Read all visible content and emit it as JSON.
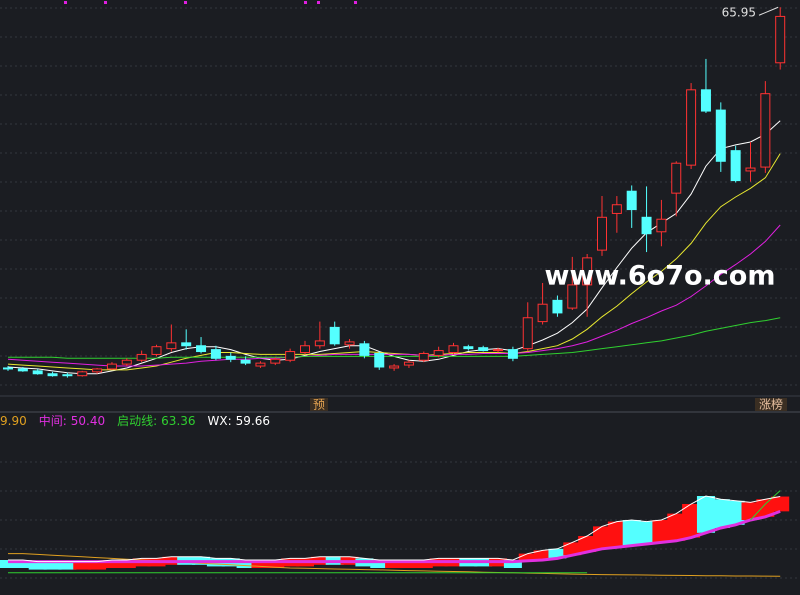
{
  "chart_data": [
    {
      "type": "candlestick",
      "open": [
        28.6,
        28.5,
        28.3,
        28.0,
        27.9,
        27.8,
        28.2,
        28.5,
        29.0,
        29.4,
        30.0,
        30.6,
        31.2,
        30.9,
        30.5,
        29.8,
        29.4,
        28.8,
        29.1,
        29.4,
        30.2,
        30.9,
        32.8,
        31.0,
        31.1,
        30.1,
        28.6,
        28.9,
        29.4,
        29.9,
        30.2,
        30.8,
        30.7,
        30.4,
        30.5,
        30.6,
        33.4,
        35.6,
        34.8,
        37.2,
        40.8,
        44.6,
        46.9,
        44.2,
        42.7,
        46.7,
        49.6,
        57.4,
        55.3,
        51.1,
        49.0,
        49.4,
        60.2
      ],
      "high": [
        28.8,
        28.7,
        28.5,
        28.2,
        28.1,
        28.3,
        28.6,
        29.2,
        29.6,
        30.4,
        31.0,
        33.1,
        32.6,
        31.8,
        30.9,
        30.2,
        29.8,
        29.3,
        29.7,
        30.6,
        31.4,
        33.4,
        33.4,
        31.6,
        31.4,
        30.3,
        29.0,
        29.4,
        30.3,
        30.8,
        31.2,
        31.0,
        30.9,
        30.7,
        30.8,
        35.4,
        37.4,
        36.1,
        40.1,
        40.4,
        46.4,
        46.4,
        47.5,
        47.4,
        46.0,
        50.0,
        58.1,
        60.6,
        56.1,
        51.6,
        52.0,
        58.3,
        65.95
      ],
      "low": [
        28.3,
        28.2,
        27.9,
        27.7,
        27.6,
        27.7,
        28.0,
        28.4,
        28.8,
        29.2,
        29.8,
        30.3,
        30.5,
        30.1,
        29.4,
        29.2,
        28.9,
        28.6,
        28.9,
        29.2,
        30.0,
        30.6,
        30.9,
        30.6,
        29.6,
        28.4,
        28.3,
        28.6,
        29.2,
        29.7,
        30.0,
        30.4,
        30.3,
        30.2,
        29.3,
        30.3,
        33.1,
        33.9,
        34.6,
        33.9,
        40.2,
        42.6,
        43.1,
        40.6,
        41.2,
        44.3,
        49.2,
        55.0,
        48.9,
        47.8,
        47.9,
        48.8,
        59.5
      ],
      "close": [
        28.5,
        28.3,
        28.0,
        27.8,
        27.8,
        28.2,
        28.5,
        29.0,
        29.4,
        30.0,
        30.8,
        31.2,
        30.9,
        30.3,
        29.6,
        29.5,
        29.1,
        29.1,
        29.5,
        30.3,
        30.9,
        31.4,
        31.1,
        31.3,
        29.9,
        28.7,
        28.8,
        29.2,
        30.1,
        30.4,
        30.9,
        30.6,
        30.4,
        30.5,
        29.6,
        33.8,
        35.2,
        34.3,
        37.2,
        40.0,
        44.2,
        45.5,
        45.0,
        42.5,
        44.0,
        49.8,
        57.4,
        55.2,
        50.0,
        48.0,
        49.3,
        57.0,
        65.0
      ],
      "up_color": "#ff3232",
      "down_color": "#54ffff",
      "max_label": "65.95",
      "series": [
        {
          "color": "#ffffff",
          "values": [
            28.7,
            28.6,
            28.5,
            28.3,
            28.1,
            28.0,
            28.0,
            28.3,
            28.6,
            29.1,
            29.6,
            30.2,
            30.6,
            30.8,
            30.8,
            30.5,
            30.0,
            29.6,
            29.4,
            29.5,
            29.9,
            30.3,
            30.6,
            30.9,
            30.9,
            30.3,
            29.8,
            29.4,
            29.3,
            29.5,
            29.9,
            30.3,
            30.5,
            30.6,
            30.4,
            30.9,
            31.5,
            32.2,
            33.3,
            34.7,
            36.9,
            39.0,
            41.0,
            42.6,
            43.6,
            44.6,
            46.6,
            49.5,
            51.3,
            51.7,
            52.0,
            52.8,
            54.2
          ]
        },
        {
          "color": "#e8e830",
          "values": [
            29.0,
            28.9,
            28.8,
            28.7,
            28.6,
            28.5,
            28.4,
            28.4,
            28.4,
            28.6,
            28.8,
            29.2,
            29.6,
            29.9,
            30.2,
            30.2,
            30.1,
            30.0,
            30.0,
            30.0,
            30.0,
            30.0,
            30.1,
            30.2,
            30.3,
            30.2,
            30.1,
            30.0,
            29.9,
            30.0,
            30.1,
            30.2,
            30.2,
            30.2,
            30.1,
            30.3,
            30.6,
            30.9,
            31.6,
            32.6,
            33.9,
            35.0,
            36.3,
            37.5,
            38.6,
            39.9,
            41.5,
            43.6,
            45.3,
            46.3,
            47.2,
            48.3,
            50.8
          ]
        },
        {
          "color": "#e020e0",
          "values": [
            29.5,
            29.4,
            29.3,
            29.2,
            29.1,
            29.0,
            28.9,
            28.8,
            28.8,
            28.8,
            28.9,
            29.0,
            29.1,
            29.3,
            29.4,
            29.5,
            29.5,
            29.6,
            29.6,
            29.7,
            29.8,
            29.9,
            30.0,
            30.0,
            30.0,
            30.0,
            30.0,
            30.0,
            29.9,
            29.9,
            30.0,
            30.0,
            30.1,
            30.1,
            30.1,
            30.2,
            30.4,
            30.6,
            30.9,
            31.3,
            31.9,
            32.5,
            33.2,
            33.8,
            34.5,
            35.1,
            36.0,
            37.1,
            38.3,
            39.3,
            40.4,
            41.7,
            43.4
          ]
        },
        {
          "color": "#30d030",
          "values": [
            29.7,
            29.7,
            29.7,
            29.7,
            29.6,
            29.6,
            29.6,
            29.6,
            29.6,
            29.6,
            29.6,
            29.7,
            29.7,
            29.7,
            29.7,
            29.7,
            29.7,
            29.7,
            29.7,
            29.7,
            29.8,
            29.8,
            29.8,
            29.8,
            29.8,
            29.8,
            29.8,
            29.8,
            29.8,
            29.8,
            29.8,
            29.8,
            29.8,
            29.8,
            29.8,
            29.9,
            30.0,
            30.1,
            30.2,
            30.4,
            30.6,
            30.8,
            31.0,
            31.2,
            31.4,
            31.7,
            32.0,
            32.4,
            32.7,
            33.0,
            33.3,
            33.5,
            33.8
          ]
        }
      ],
      "ylim": [
        25.8,
        66.7
      ],
      "annotations": [
        "www.6o7o.com"
      ],
      "markers": [
        "预",
        "涨榜"
      ]
    },
    {
      "type": "line",
      "ylim": [
        0,
        100
      ],
      "series": [
        {
          "color": "#e0a020",
          "value_label": "9.90",
          "values": [
            24,
            24,
            23.5,
            23,
            22.5,
            22,
            21.5,
            21,
            20.5,
            20,
            19.5,
            19,
            18.5,
            18,
            17.5,
            17,
            16.5,
            16,
            15.5,
            15,
            14.8,
            14.6,
            14.4,
            14.2,
            14,
            13.8,
            13.6,
            13.4,
            13.2,
            13,
            12.8,
            12.6,
            12.4,
            12.2,
            12,
            11.8,
            11.6,
            11.4,
            11.2,
            11,
            10.9,
            10.8,
            10.7,
            10.6,
            10.5,
            10.4,
            10.3,
            10.2,
            10.1,
            10,
            10,
            9.95,
            9.9
          ]
        },
        {
          "name": "中间:",
          "color": "#e030e0",
          "value_label": "50.40",
          "values": [
            19,
            19,
            19,
            19,
            19,
            19,
            19,
            19,
            19,
            19,
            19,
            19,
            19,
            19,
            19,
            19,
            19,
            19,
            19,
            19,
            19,
            19,
            19,
            19,
            19,
            19,
            19,
            19,
            19,
            19,
            19,
            19,
            19,
            19,
            19,
            19.5,
            20,
            21,
            23,
            25,
            27,
            28,
            29,
            30,
            31,
            32,
            34,
            37,
            40,
            42,
            45,
            47,
            50.4
          ]
        },
        {
          "name": "启动线:",
          "color": "#30d030",
          "value_label": "63.36",
          "values": [
            12,
            12,
            12,
            12,
            12,
            12,
            12,
            12,
            12,
            12,
            12,
            12,
            12,
            12,
            12,
            12,
            12,
            12,
            12,
            12,
            12,
            12,
            12,
            12,
            12,
            12,
            12,
            12,
            12,
            12,
            12,
            12,
            12,
            12,
            12,
            12,
            12,
            12,
            12,
            12,
            null,
            null,
            null,
            null,
            null,
            null,
            null,
            null,
            null,
            null,
            45,
            55,
            63.36
          ]
        },
        {
          "name": "WX:",
          "color": "#ffffff",
          "value_label": "59.66",
          "values": [
            20,
            20,
            19,
            19,
            19,
            19,
            19,
            20,
            20,
            21,
            21,
            22,
            22,
            22,
            21,
            21,
            20,
            20,
            20,
            21,
            21,
            22,
            22,
            22,
            21,
            20,
            20,
            20,
            20,
            21,
            21,
            21,
            21,
            21,
            20,
            24,
            26,
            27,
            31,
            35,
            41,
            44,
            45,
            44,
            45,
            49,
            55,
            60,
            58,
            57,
            56,
            58,
            59.66
          ]
        }
      ]
    }
  ]
}
